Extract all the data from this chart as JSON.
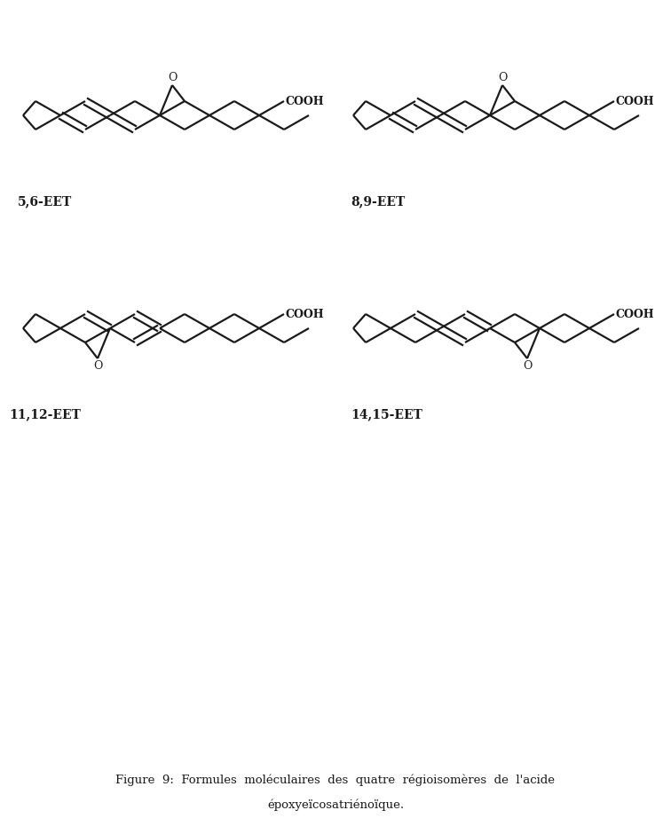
{
  "figsize": [
    7.56,
    9.22
  ],
  "dpi": 100,
  "bg_color": "#ffffff",
  "caption_line1": "Figure  9:  Formules  moléculaires  des  quatre  régioisomères  de  l'acide",
  "caption_line2": "époxyeïcosatriénoïque.",
  "label_56": "5,6-EET",
  "label_89": "8,9-EET",
  "label_1112": "11,12-EET",
  "label_1415": "14,15-EET",
  "lw": 1.6,
  "color": "#1a1a1a"
}
